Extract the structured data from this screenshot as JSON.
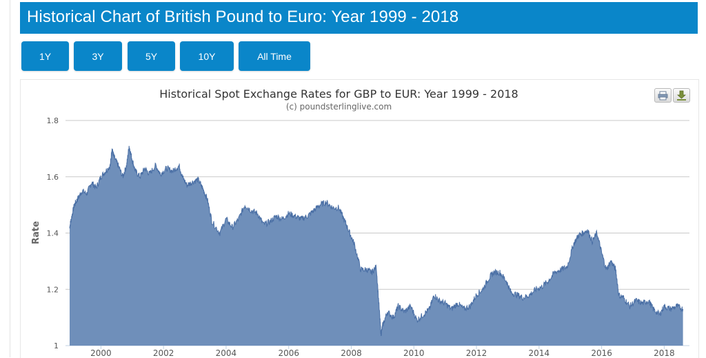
{
  "page": {
    "title": "Historical Chart of British Pound to Euro: Year 1999 - 2018",
    "range_buttons": [
      "1Y",
      "3Y",
      "5Y",
      "10Y",
      "All Time"
    ],
    "accent_color": "#0a86c9",
    "export_icons": [
      "print-icon",
      "download-icon"
    ]
  },
  "chart_data": {
    "type": "area",
    "title": "Historical Spot Exchange Rates for GBP to EUR: Year 1999 - 2018",
    "subtitle": "(c) poundsterlinglive.com",
    "xlabel": "",
    "ylabel": "Rate",
    "ylim": [
      1,
      1.8
    ],
    "xlim": [
      1999.0,
      2018.6
    ],
    "yticks": [
      "1",
      "1.2",
      "1.4",
      "1.6",
      "1.8"
    ],
    "xticks": [
      "2000",
      "2002",
      "2004",
      "2006",
      "2008",
      "2010",
      "2012",
      "2014",
      "2016",
      "2018"
    ],
    "grid": true,
    "legend": "none",
    "fill_color": "#6f8fba",
    "line_color": "#4a6fa5",
    "series": [
      {
        "x": [
          1999.0,
          1999.05,
          1999.15,
          1999.25,
          1999.4,
          1999.55,
          1999.7,
          1999.85,
          2000.0,
          2000.15,
          2000.3,
          2000.35,
          2000.42,
          2000.55,
          2000.7,
          2000.82,
          2000.9,
          2001.0,
          2001.1,
          2001.25,
          2001.4,
          2001.55,
          2001.75,
          2001.9,
          2002.1,
          2002.3,
          2002.5,
          2002.6,
          2002.75,
          2002.9,
          2003.1,
          2003.25,
          2003.4,
          2003.55,
          2003.8,
          2004.0,
          2004.2,
          2004.4,
          2004.6,
          2004.8,
          2005.0,
          2005.2,
          2005.4,
          2005.6,
          2005.8,
          2006.0,
          2006.2,
          2006.4,
          2006.6,
          2006.8,
          2007.0,
          2007.2,
          2007.4,
          2007.6,
          2007.8,
          2007.95,
          2008.1,
          2008.3,
          2008.5,
          2008.65,
          2008.8,
          2008.9,
          2008.95,
          2009.0,
          2009.15,
          2009.35,
          2009.5,
          2009.7,
          2009.9,
          2010.1,
          2010.3,
          2010.5,
          2010.65,
          2010.8,
          2011.0,
          2011.2,
          2011.4,
          2011.6,
          2011.8,
          2012.0,
          2012.2,
          2012.4,
          2012.55,
          2012.75,
          2012.95,
          2013.1,
          2013.3,
          2013.5,
          2013.7,
          2013.9,
          2014.1,
          2014.3,
          2014.5,
          2014.7,
          2014.9,
          2015.1,
          2015.25,
          2015.4,
          2015.55,
          2015.7,
          2015.85,
          2016.0,
          2016.15,
          2016.3,
          2016.45,
          2016.55,
          2016.7,
          2016.9,
          2017.1,
          2017.3,
          2017.5,
          2017.65,
          2017.85,
          2018.0,
          2018.2,
          2018.4,
          2018.6
        ],
        "y": [
          1.42,
          1.45,
          1.5,
          1.52,
          1.55,
          1.54,
          1.58,
          1.56,
          1.6,
          1.62,
          1.64,
          1.7,
          1.67,
          1.64,
          1.6,
          1.64,
          1.71,
          1.66,
          1.62,
          1.6,
          1.63,
          1.61,
          1.64,
          1.61,
          1.63,
          1.62,
          1.64,
          1.6,
          1.57,
          1.58,
          1.59,
          1.56,
          1.52,
          1.44,
          1.4,
          1.45,
          1.42,
          1.45,
          1.5,
          1.48,
          1.47,
          1.43,
          1.44,
          1.46,
          1.45,
          1.47,
          1.46,
          1.45,
          1.46,
          1.48,
          1.5,
          1.51,
          1.49,
          1.49,
          1.44,
          1.4,
          1.36,
          1.27,
          1.27,
          1.26,
          1.28,
          1.12,
          1.04,
          1.07,
          1.12,
          1.1,
          1.14,
          1.12,
          1.14,
          1.09,
          1.11,
          1.13,
          1.18,
          1.16,
          1.15,
          1.13,
          1.15,
          1.13,
          1.14,
          1.18,
          1.2,
          1.24,
          1.26,
          1.26,
          1.23,
          1.19,
          1.18,
          1.17,
          1.18,
          1.2,
          1.21,
          1.23,
          1.26,
          1.27,
          1.28,
          1.36,
          1.39,
          1.4,
          1.41,
          1.37,
          1.4,
          1.33,
          1.27,
          1.3,
          1.27,
          1.18,
          1.17,
          1.14,
          1.16,
          1.15,
          1.16,
          1.13,
          1.11,
          1.14,
          1.13,
          1.14,
          1.13
        ]
      }
    ]
  }
}
